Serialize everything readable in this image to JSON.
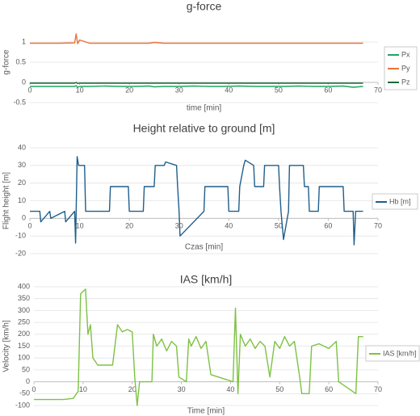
{
  "chart_data": [
    {
      "type": "line",
      "title": "g-force",
      "x_label": "time [min]",
      "y_label": "g-force",
      "x": [
        0,
        3,
        6,
        9,
        9.3,
        9.6,
        10,
        12,
        15,
        18,
        21,
        24,
        25,
        27,
        30,
        33,
        36,
        39,
        42,
        45,
        48,
        51,
        54,
        57,
        60,
        63,
        65,
        67
      ],
      "series": [
        {
          "name": "Px",
          "color": "#21a55f",
          "values": [
            -0.1,
            -0.1,
            -0.1,
            -0.1,
            -0.08,
            -0.12,
            -0.1,
            -0.1,
            -0.09,
            -0.1,
            -0.1,
            -0.09,
            -0.11,
            -0.1,
            -0.1,
            -0.09,
            -0.1,
            -0.1,
            -0.09,
            -0.1,
            -0.1,
            -0.1,
            -0.09,
            -0.1,
            -0.1,
            -0.09,
            -0.12,
            -0.1
          ]
        },
        {
          "name": "Py",
          "color": "#e8743b",
          "values": [
            0.97,
            0.97,
            0.97,
            0.98,
            1.2,
            0.96,
            1.05,
            0.97,
            0.97,
            0.97,
            0.97,
            0.97,
            0.99,
            0.97,
            0.97,
            0.97,
            0.97,
            0.97,
            0.97,
            0.97,
            0.97,
            0.97,
            0.97,
            0.97,
            0.97,
            0.97,
            0.97,
            0.97
          ]
        },
        {
          "name": "Pz",
          "color": "#1d6b3b",
          "values": [
            -0.02,
            -0.02,
            -0.02,
            -0.02,
            0.0,
            -0.03,
            -0.02,
            -0.02,
            -0.02,
            -0.02,
            -0.02,
            -0.02,
            -0.02,
            -0.02,
            -0.02,
            -0.02,
            -0.02,
            -0.02,
            -0.02,
            -0.02,
            -0.02,
            -0.02,
            -0.02,
            -0.02,
            -0.02,
            -0.02,
            -0.02,
            -0.02
          ]
        }
      ],
      "xlim": [
        0,
        70
      ],
      "xticks": [
        0,
        10,
        20,
        30,
        40,
        50,
        60,
        70
      ],
      "ylim": [
        -0.5,
        1.5
      ],
      "yticks": [
        -0.5,
        0,
        0.5,
        1
      ],
      "grid": true,
      "legend": "right"
    },
    {
      "type": "line",
      "title": "Height relative to ground [m]",
      "x_label": "Czas [min]",
      "y_label": "Flight height [m]",
      "x": [
        0,
        2,
        2.2,
        4,
        4.2,
        7,
        7.2,
        9,
        9.2,
        9.5,
        9.8,
        11,
        11.2,
        16,
        16.2,
        19.8,
        20,
        22.8,
        23,
        25,
        25.2,
        27,
        27.3,
        29.5,
        29.7,
        30,
        30.2,
        35,
        35.2,
        39.8,
        40,
        42,
        42.2,
        43,
        43.3,
        45,
        45.2,
        47,
        47.2,
        50,
        50.2,
        50.5,
        51,
        52,
        52.2,
        55,
        55.2,
        56,
        56.2,
        58,
        58.2,
        63,
        63.2,
        65,
        65.2,
        65.5,
        67
      ],
      "series": [
        {
          "name": "Hb [m]",
          "color": "#1f5f8b",
          "values": [
            4,
            4,
            -2,
            4,
            0,
            4,
            -2,
            4,
            -14,
            35,
            30,
            30,
            4,
            4,
            18,
            18,
            4,
            4,
            18,
            18,
            30,
            30,
            32,
            30,
            18,
            4,
            -10,
            4,
            18,
            18,
            4,
            4,
            18,
            30,
            33,
            30,
            18,
            18,
            30,
            30,
            18,
            4,
            -12,
            4,
            30,
            30,
            18,
            18,
            4,
            4,
            18,
            18,
            4,
            4,
            -15,
            4,
            4
          ]
        }
      ],
      "xlim": [
        0,
        70
      ],
      "xticks": [
        0,
        10,
        20,
        30,
        40,
        50,
        60,
        70
      ],
      "ylim": [
        -20,
        40
      ],
      "yticks": [
        -20,
        -10,
        0,
        10,
        20,
        30,
        40
      ],
      "grid": true,
      "legend": "right"
    },
    {
      "type": "line",
      "title": "IAS [km/h]",
      "x_label": "Time [min]",
      "y_label": "Velocity [km/h]",
      "x": [
        0,
        6,
        8,
        9,
        9.5,
        10.5,
        11,
        11.5,
        12,
        13,
        16,
        17,
        18,
        19,
        20,
        20.5,
        21,
        21.5,
        24,
        24.3,
        25,
        26,
        27,
        28,
        29,
        29.5,
        31,
        31.5,
        32,
        33,
        34,
        35,
        36,
        40.5,
        41,
        41.5,
        42,
        43,
        44,
        45,
        46,
        47,
        48,
        49,
        50,
        51,
        52,
        53,
        54,
        54.5,
        56,
        56.5,
        58,
        60,
        61.5,
        62,
        65.5,
        66,
        67
      ],
      "series": [
        {
          "name": "IAS [km/h]",
          "color": "#7dc243",
          "values": [
            -75,
            -75,
            -70,
            -40,
            370,
            390,
            200,
            240,
            100,
            70,
            70,
            240,
            210,
            220,
            210,
            20,
            -100,
            0,
            0,
            200,
            150,
            180,
            130,
            170,
            150,
            20,
            0,
            180,
            150,
            190,
            140,
            170,
            30,
            0,
            310,
            -50,
            200,
            150,
            180,
            140,
            170,
            150,
            20,
            170,
            140,
            190,
            150,
            170,
            30,
            -50,
            -50,
            150,
            160,
            140,
            170,
            0,
            -50,
            190,
            190
          ]
        }
      ],
      "xlim": [
        0,
        70
      ],
      "xticks": [
        0,
        10,
        20,
        30,
        40,
        50,
        60,
        70
      ],
      "ylim": [
        -100,
        400
      ],
      "yticks": [
        -100,
        -50,
        0,
        50,
        100,
        150,
        200,
        250,
        300,
        350,
        400
      ],
      "grid": true,
      "legend": "right"
    }
  ]
}
